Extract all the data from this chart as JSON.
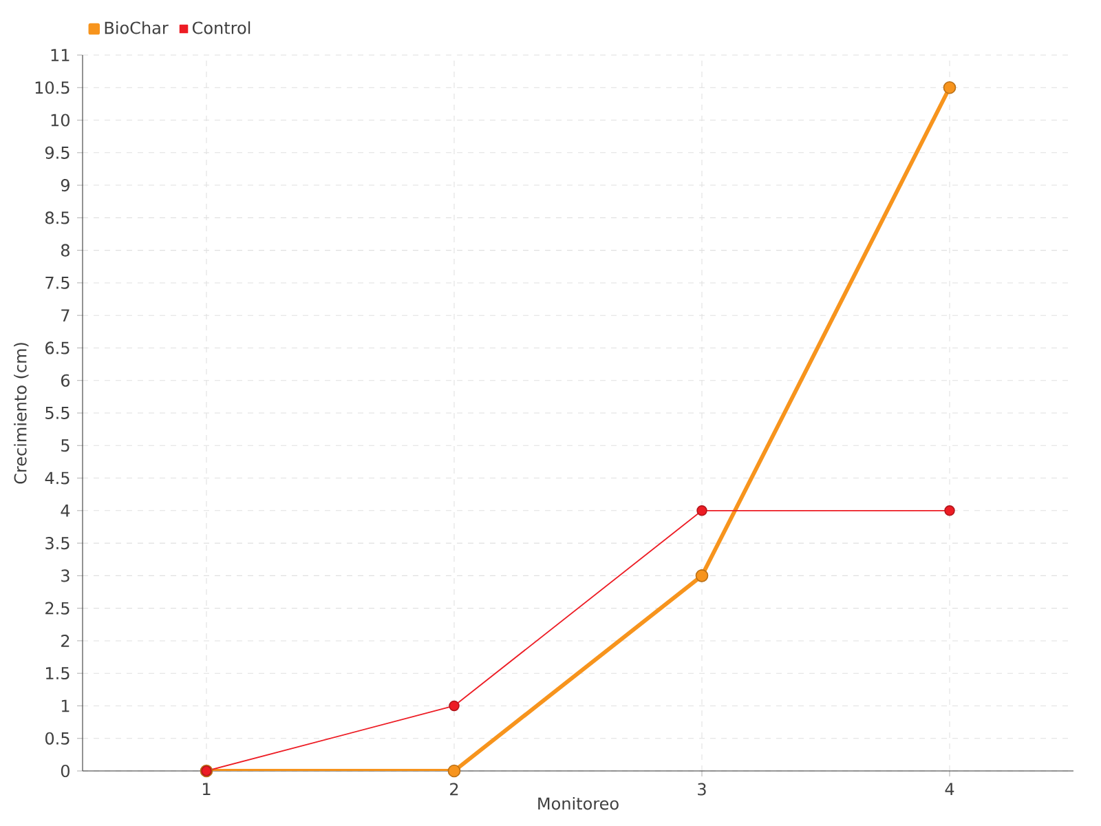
{
  "chart_data": {
    "type": "line",
    "xlabel": "Monitoreo",
    "ylabel": "Crecimiento (cm)",
    "categories": [
      "1",
      "2",
      "3",
      "4"
    ],
    "series": [
      {
        "name": "BioChar",
        "color": "#f7941d",
        "values": [
          0,
          0,
          3,
          10.5
        ]
      },
      {
        "name": "Control",
        "color": "#ed1c24",
        "values": [
          0,
          1,
          4,
          4
        ]
      }
    ],
    "ylim": [
      0,
      11
    ],
    "yticks": [
      0,
      0.5,
      1,
      1.5,
      2,
      2.5,
      3,
      3.5,
      4,
      4.5,
      5,
      5.5,
      6,
      6.5,
      7,
      7.5,
      8,
      8.5,
      9,
      9.5,
      10,
      10.5,
      11
    ],
    "grid": true,
    "legend": "top left",
    "marker": "circle",
    "line_style": "solid"
  }
}
